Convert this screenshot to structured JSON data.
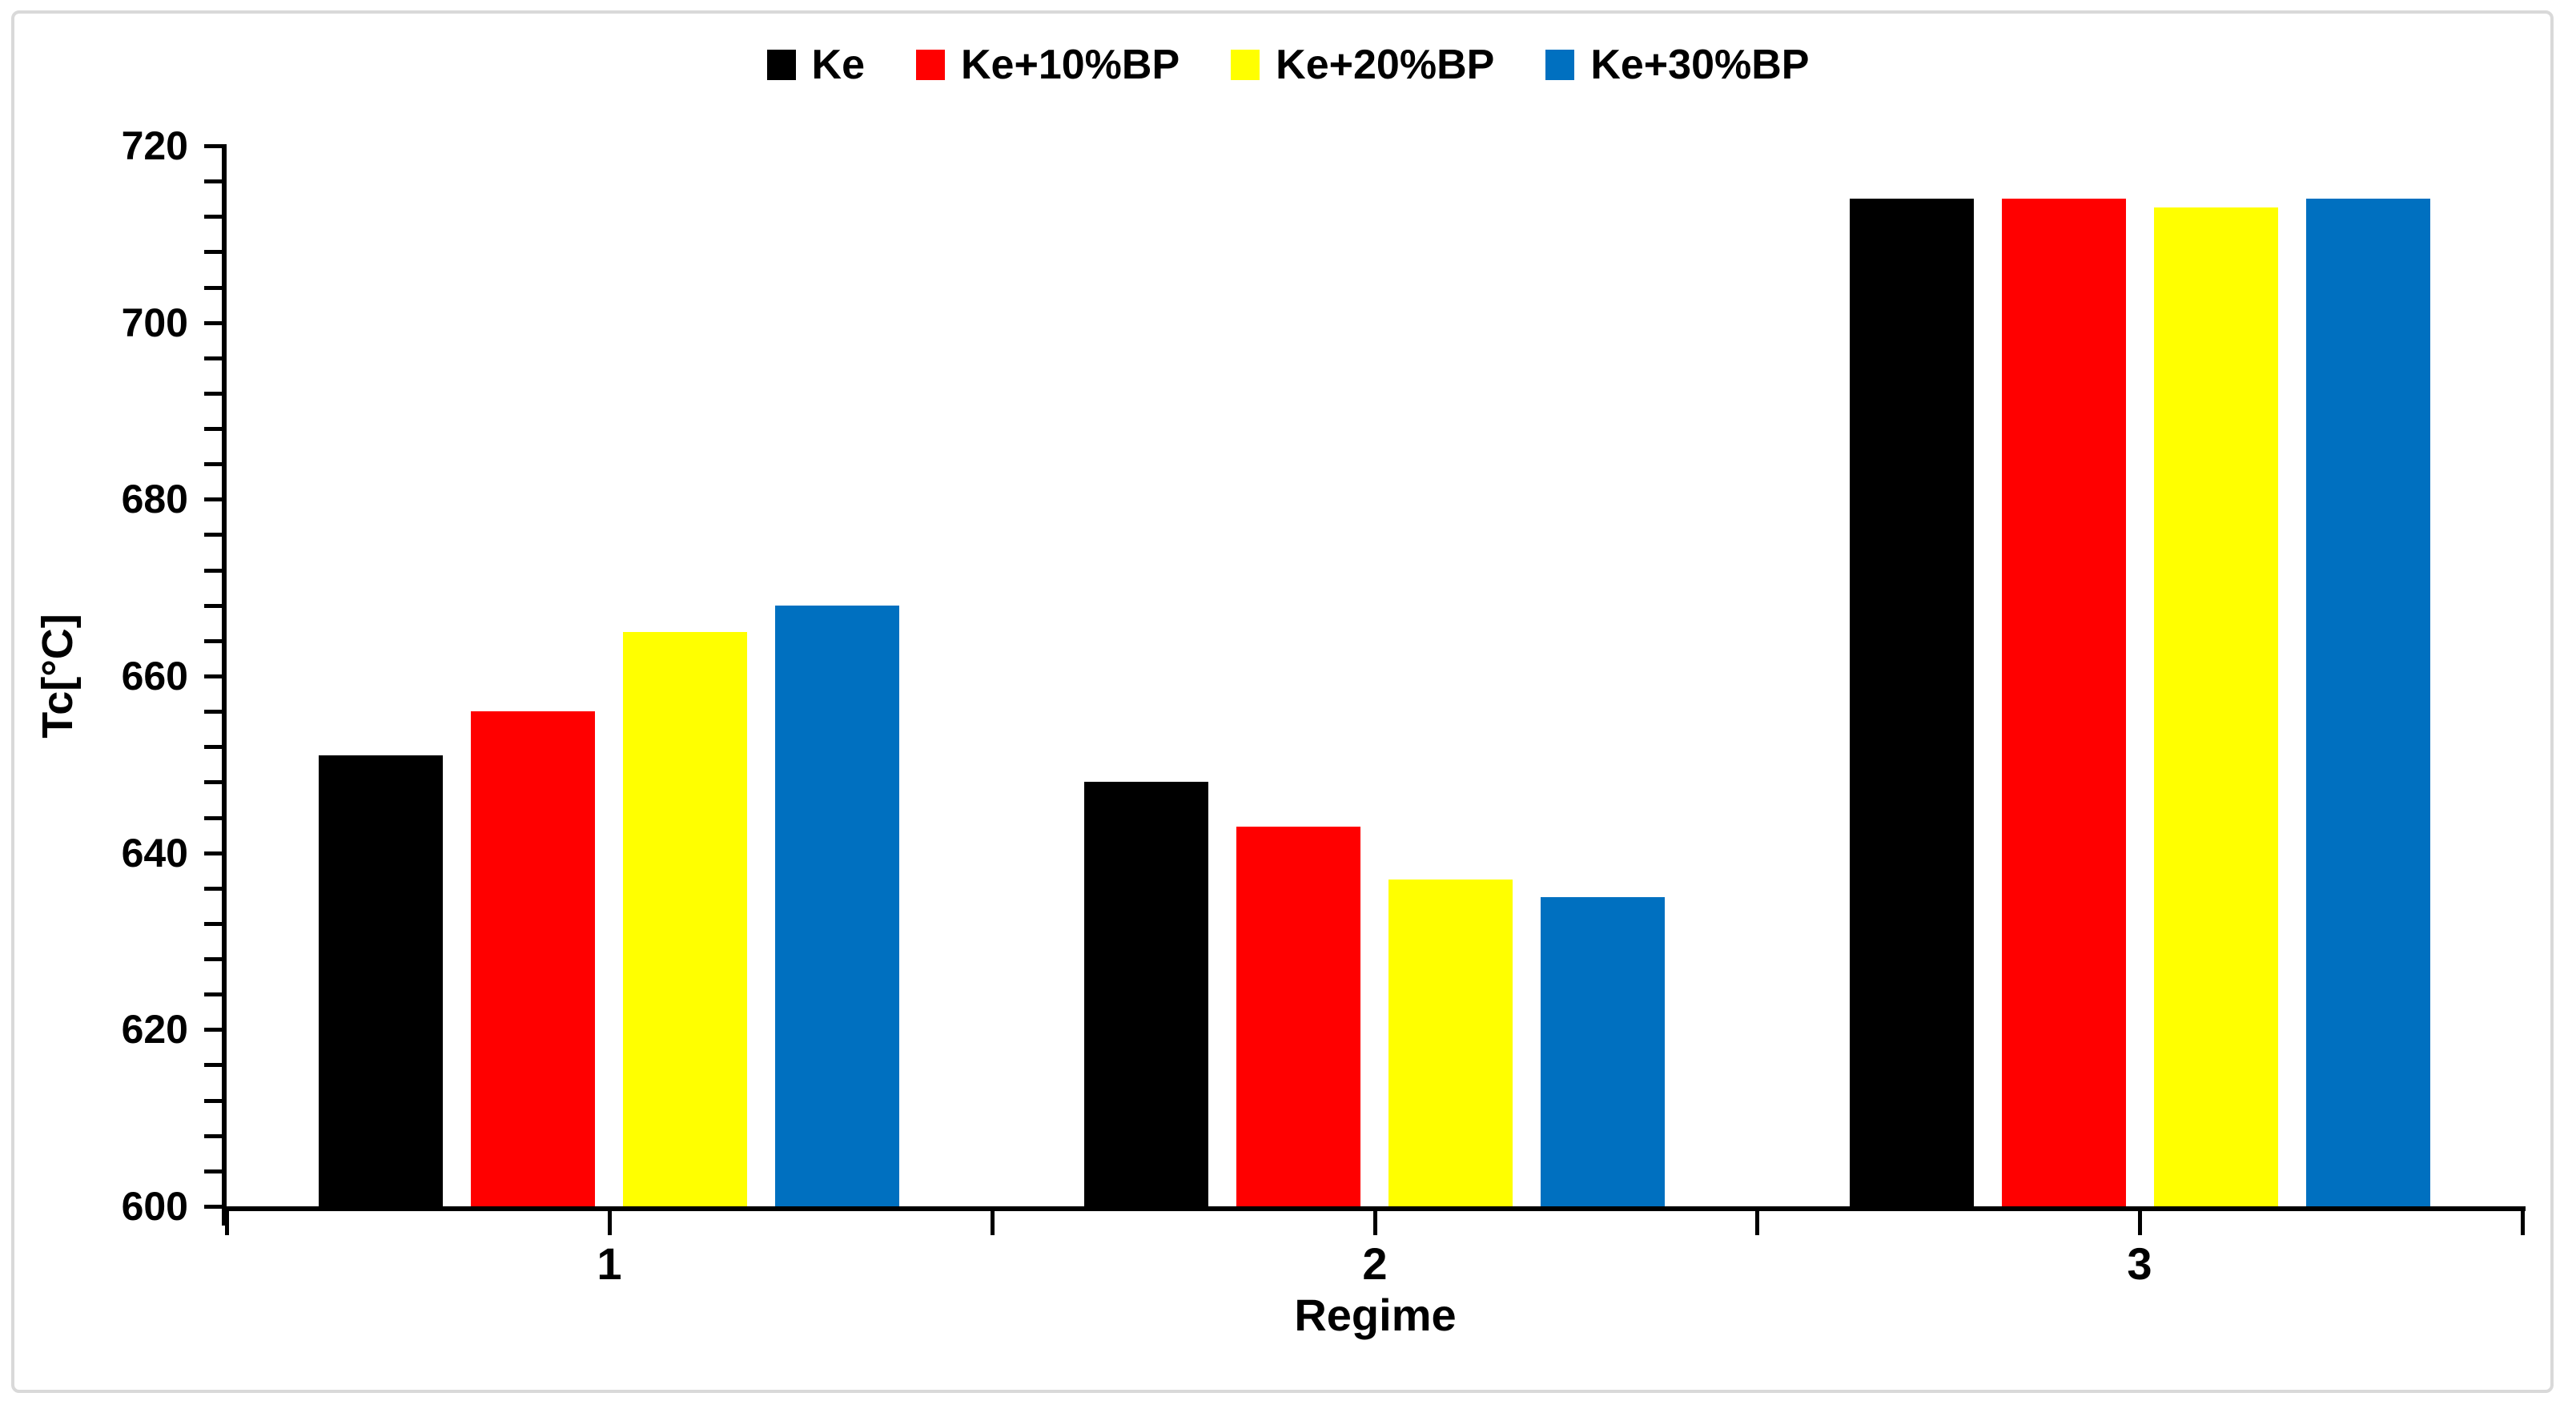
{
  "frame": {
    "border_color": "#d9d9d9",
    "background": "#ffffff"
  },
  "chart_data": {
    "type": "bar",
    "title": "",
    "categories": [
      "1",
      "2",
      "3"
    ],
    "series": [
      {
        "name": "Ke",
        "color": "#000000",
        "values": [
          651,
          648,
          714
        ]
      },
      {
        "name": "Ke+10%BP",
        "color": "#ff0000",
        "values": [
          656,
          643,
          714
        ]
      },
      {
        "name": "Ke+20%BP",
        "color": "#ffff00",
        "values": [
          665,
          637,
          713
        ]
      },
      {
        "name": "Ke+30%BP",
        "color": "#0070c0",
        "values": [
          668,
          635,
          714
        ]
      }
    ],
    "xlabel": "Regime",
    "ylabel": "Tc[°C]",
    "ylim": [
      600,
      720
    ],
    "ytick_major": 20,
    "ytick_minor": 4,
    "yticks": [
      "600",
      "620",
      "640",
      "660",
      "680",
      "700",
      "720"
    ],
    "grid": false,
    "legend_position": "top-center",
    "axis_color": "#000000",
    "text_color": "#000000"
  }
}
